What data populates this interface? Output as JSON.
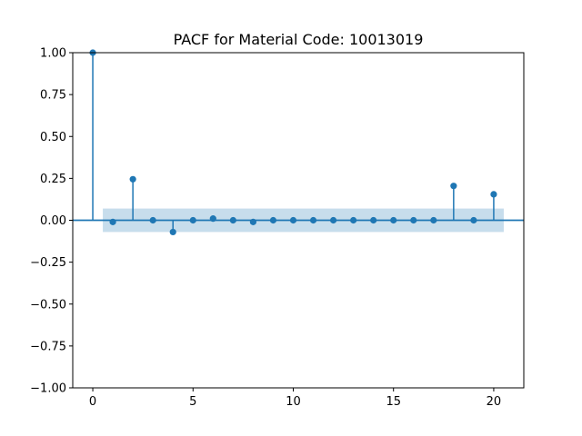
{
  "chart_data": {
    "type": "scatter",
    "title": "PACF for Material Code: 10013019",
    "xlabel": "",
    "ylabel": "",
    "xlim": [
      -1,
      21.5
    ],
    "ylim": [
      -1.0,
      1.0
    ],
    "xticks": [
      0,
      5,
      10,
      15,
      20
    ],
    "xtick_labels": [
      "0",
      "5",
      "10",
      "15",
      "20"
    ],
    "yticks": [
      1.0,
      0.75,
      0.5,
      0.25,
      0.0,
      -0.25,
      -0.5,
      -0.75,
      -1.0
    ],
    "ytick_labels": [
      "1.00",
      "0.75",
      "0.50",
      "0.25",
      "0.00",
      "−0.25",
      "−0.50",
      "−0.75",
      "−1.00"
    ],
    "grid": false,
    "lags": [
      0,
      1,
      2,
      3,
      4,
      5,
      6,
      7,
      8,
      9,
      10,
      11,
      12,
      13,
      14,
      15,
      16,
      17,
      18,
      19,
      20
    ],
    "values": [
      1.0,
      -0.01,
      0.245,
      0.0,
      -0.07,
      0.0,
      0.01,
      0.0,
      -0.01,
      0.0,
      0.0,
      0.0,
      0.0,
      0.0,
      0.0,
      0.0,
      0.0,
      0.0,
      0.205,
      0.0,
      0.155
    ],
    "confidence_band": {
      "lower": -0.07,
      "upper": 0.07,
      "x_start": 0.5,
      "x_end": 20.5
    },
    "colors": {
      "marker": "#1f77b4",
      "band": "#1f77b4",
      "band_opacity": 0.25,
      "zero_line": "#1f77b4"
    }
  }
}
